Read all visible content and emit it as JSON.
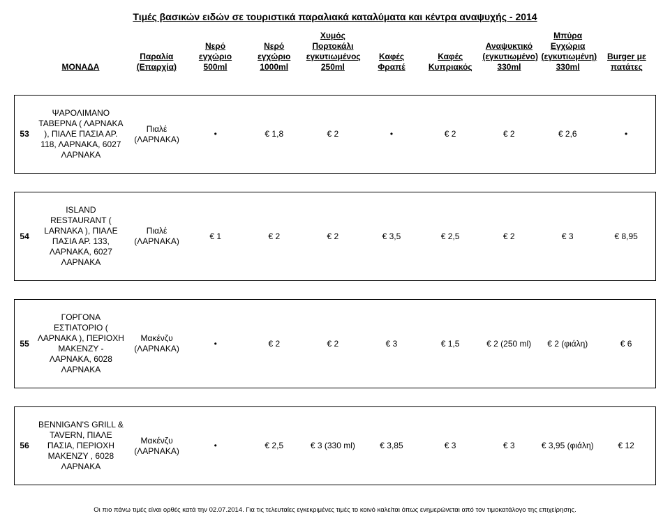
{
  "title": "Τιμές βασικών ειδών σε τουριστικά παραλιακά καταλύματα και κέντρα αναψυχής - 2014",
  "headers": [
    "ΜΟΝΑΔΑ",
    "Παραλία (Επαρχία)",
    "Νερό εγχώριο 500ml",
    "Νερό εγχώριο 1000ml",
    "Χυμός Πορτοκάλι εγκυτιωμένος 250ml",
    "Καφές Φραπέ",
    "Καφές Κυπριακός",
    "Αναψυκτικό (εγκυτιωμένο) 330ml",
    "Μπύρα Εγχώρια (εγκυτιωμένη) 330ml",
    "Burger με πατάτες"
  ],
  "rows": [
    {
      "num": "53",
      "name": "ΨΑΡΟΛΙΜΑΝΟ ΤΑΒΕΡΝΑ ( ΛΑΡΝΑΚΑ ), ΠΙΑΛΕ ΠΑΣΙΑ ΑΡ. 118, ΛΑΡΝΑΚΑ, 6027 ΛΑΡΝΑΚΑ",
      "loc": "Πιαλέ (ΛΑΡΝΑΚΑ)",
      "v": [
        "•",
        "€ 1,8",
        "€ 2",
        "•",
        "€ 2",
        "€ 2",
        "€ 2,6",
        "•"
      ]
    },
    {
      "num": "54",
      "name": "ISLAND RESTAURANT ( LARNAKA ), ΠΙΑΛΕ ΠΑΣΙΑ ΑΡ. 133, ΛΑΡΝΑΚΑ, 6027 ΛΑΡΝΑΚΑ",
      "loc": "Πιαλέ (ΛΑΡΝΑΚΑ)",
      "v": [
        "€ 1",
        "€ 2",
        "€ 2",
        "€ 3,5",
        "€ 2,5",
        "€ 2",
        "€ 3",
        "€ 8,95"
      ]
    },
    {
      "num": "55",
      "name": "ΓΟΡΓΟΝΑ ΕΣΤΙΑΤΟΡΙΟ ( ΛΑΡΝΑΚΑ ), ΠΕΡΙΟΧΗ ΜΑΚΕΝΖΥ - ΛΑΡΝΑΚΑ, 6028 ΛΑΡΝΑΚΑ",
      "loc": "Μακένζυ (ΛΑΡΝΑΚΑ)",
      "v": [
        "•",
        "€ 2",
        "€ 2",
        "€ 3",
        "€ 1,5",
        "€ 2 (250 ml)",
        "€ 2 (φιάλη)",
        "€ 6"
      ]
    },
    {
      "num": "56",
      "name": "BENNIGAN'S GRILL & TAVERN, ΠΙΑΛΕ ΠΑΣΙΑ, ΠΕΡΙΟΧΗ ΜΑΚΕΝΖΥ , 6028 ΛΑΡΝΑΚΑ",
      "loc": "Μακένζυ (ΛΑΡΝΑΚΑ)",
      "v": [
        "•",
        "€ 2,5",
        "€ 3 (330 ml)",
        "€ 3,85",
        "€ 3",
        "€ 3",
        "€ 3,95 (φιάλη)",
        "€ 12"
      ]
    }
  ],
  "footnote": "Οι πιο πάνω τιμές είναι ορθές κατά την 02.07.2014.   Για τις τελευταίες εγκεκριμένες τιμές το κοινό καλείται όπως ενημερώνεται από τον τιμοκατάλογο της επιχείρησης."
}
